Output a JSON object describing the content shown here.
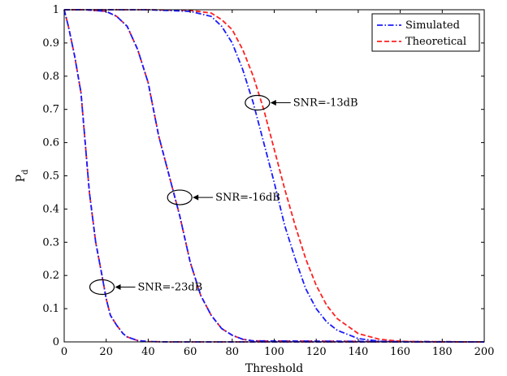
{
  "chart_data": {
    "type": "line",
    "xlabel": "Threshold",
    "ylabel": "P",
    "ylabel_sub": "d",
    "xlim": [
      0,
      200
    ],
    "ylim": [
      0,
      1
    ],
    "xticks": [
      0,
      20,
      40,
      60,
      80,
      100,
      120,
      140,
      160,
      180,
      200
    ],
    "yticks": [
      0,
      0.1,
      0.2,
      0.3,
      0.4,
      0.5,
      0.6,
      0.7,
      0.8,
      0.9,
      1
    ],
    "grid": false,
    "legend": {
      "position": "top-right",
      "entries": [
        {
          "name": "Simulated",
          "color": "#1a1aff",
          "style": "dash-dot"
        },
        {
          "name": "Theoretical",
          "color": "#ff2020",
          "style": "dashed"
        }
      ]
    },
    "curves": [
      {
        "label": "SNR=-23dB",
        "simulated": {
          "x": [
            0,
            2,
            5,
            8,
            10,
            12,
            15,
            18,
            20,
            22,
            25,
            28,
            30,
            35,
            40,
            50,
            200
          ],
          "y": [
            1,
            0.95,
            0.86,
            0.75,
            0.6,
            0.45,
            0.3,
            0.2,
            0.13,
            0.08,
            0.05,
            0.025,
            0.015,
            0.004,
            0.001,
            0,
            0
          ]
        },
        "theoretical": {
          "x": [
            0,
            2,
            5,
            8,
            10,
            12,
            15,
            18,
            20,
            22,
            25,
            28,
            30,
            35,
            40,
            50,
            200
          ],
          "y": [
            1,
            0.95,
            0.86,
            0.75,
            0.6,
            0.45,
            0.3,
            0.2,
            0.13,
            0.08,
            0.05,
            0.025,
            0.015,
            0.004,
            0.001,
            0,
            0
          ]
        }
      },
      {
        "label": "SNR=-16dB",
        "simulated": {
          "x": [
            0,
            10,
            20,
            25,
            30,
            35,
            40,
            45,
            50,
            55,
            60,
            65,
            70,
            75,
            80,
            85,
            90,
            200
          ],
          "y": [
            1,
            1,
            0.995,
            0.98,
            0.95,
            0.88,
            0.78,
            0.62,
            0.5,
            0.38,
            0.24,
            0.14,
            0.08,
            0.04,
            0.02,
            0.008,
            0.003,
            0
          ]
        },
        "theoretical": {
          "x": [
            0,
            10,
            20,
            25,
            30,
            35,
            40,
            45,
            50,
            55,
            60,
            65,
            70,
            75,
            80,
            85,
            90,
            200
          ],
          "y": [
            1,
            1,
            0.995,
            0.98,
            0.95,
            0.88,
            0.78,
            0.62,
            0.5,
            0.38,
            0.24,
            0.14,
            0.08,
            0.04,
            0.02,
            0.008,
            0.003,
            0
          ]
        }
      },
      {
        "label": "SNR=-13dB",
        "simulated": {
          "x": [
            0,
            40,
            60,
            70,
            75,
            80,
            85,
            90,
            95,
            100,
            105,
            110,
            115,
            120,
            125,
            130,
            140,
            150,
            160,
            200
          ],
          "y": [
            1,
            1,
            0.995,
            0.98,
            0.95,
            0.9,
            0.82,
            0.72,
            0.6,
            0.48,
            0.35,
            0.25,
            0.16,
            0.1,
            0.06,
            0.035,
            0.01,
            0.002,
            0,
            0
          ]
        },
        "theoretical": {
          "x": [
            0,
            40,
            60,
            70,
            75,
            80,
            85,
            90,
            95,
            100,
            105,
            110,
            115,
            120,
            125,
            130,
            140,
            150,
            160,
            170,
            200
          ],
          "y": [
            1,
            1,
            0.998,
            0.99,
            0.97,
            0.94,
            0.88,
            0.8,
            0.7,
            0.58,
            0.46,
            0.35,
            0.25,
            0.17,
            0.11,
            0.07,
            0.025,
            0.008,
            0.002,
            0,
            0
          ]
        }
      }
    ],
    "annotations": [
      {
        "text": "SNR=-13dB",
        "ellipse_at": [
          92,
          0.72
        ],
        "label_at": [
          109,
          0.72
        ]
      },
      {
        "text": "SNR=-16dB",
        "ellipse_at": [
          55,
          0.435
        ],
        "label_at": [
          72,
          0.435
        ]
      },
      {
        "text": "SNR=-23dB",
        "ellipse_at": [
          18,
          0.165
        ],
        "label_at": [
          35,
          0.165
        ]
      }
    ]
  }
}
